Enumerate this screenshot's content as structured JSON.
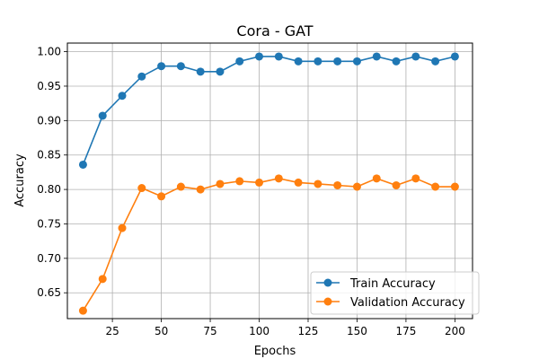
{
  "chart_data": {
    "type": "line",
    "title": "Cora - GAT",
    "xlabel": "Epochs",
    "ylabel": "Accuracy",
    "xlim": [
      2,
      209
    ],
    "ylim": [
      0.6125,
      1.0125
    ],
    "xticks": [
      25,
      50,
      75,
      100,
      125,
      150,
      175,
      200
    ],
    "yticks": [
      0.65,
      0.7,
      0.75,
      0.8,
      0.85,
      0.9,
      0.95,
      1.0
    ],
    "ytick_labels": [
      "0.65",
      "0.70",
      "0.75",
      "0.80",
      "0.85",
      "0.90",
      "0.95",
      "1.00"
    ],
    "grid": true,
    "legend_position": "lower-right",
    "x": [
      10,
      20,
      30,
      40,
      50,
      60,
      70,
      80,
      90,
      100,
      110,
      120,
      130,
      140,
      150,
      160,
      170,
      180,
      190,
      200
    ],
    "series": [
      {
        "name": "Train Accuracy",
        "color": "#1f77b4",
        "values": [
          0.836,
          0.907,
          0.936,
          0.964,
          0.979,
          0.979,
          0.971,
          0.971,
          0.986,
          0.993,
          0.993,
          0.986,
          0.986,
          0.986,
          0.986,
          0.993,
          0.986,
          0.993,
          0.986,
          0.993
        ]
      },
      {
        "name": "Validation Accuracy",
        "color": "#ff7f0e",
        "values": [
          0.624,
          0.67,
          0.744,
          0.802,
          0.79,
          0.804,
          0.8,
          0.808,
          0.812,
          0.81,
          0.816,
          0.81,
          0.808,
          0.806,
          0.804,
          0.816,
          0.806,
          0.816,
          0.804,
          0.804
        ]
      }
    ]
  }
}
